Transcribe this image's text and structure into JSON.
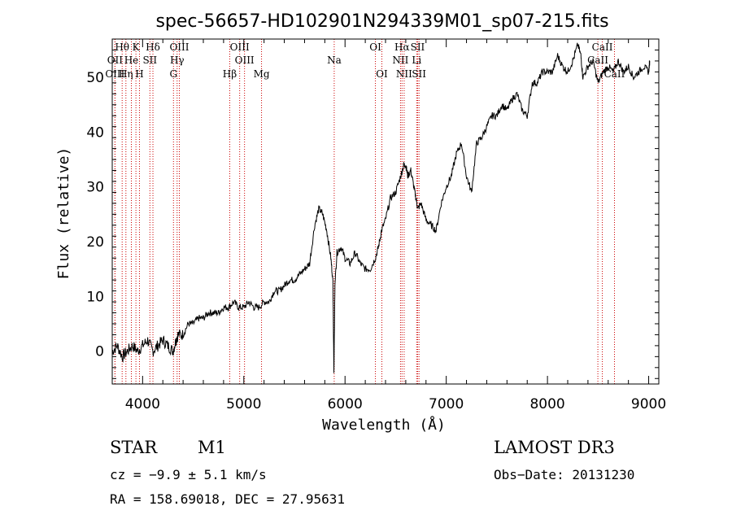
{
  "chart_data": {
    "type": "line",
    "title": "spec-56657-HD102901N294339M01_sp07-215.fits",
    "xlabel": "Wavelength (Å)",
    "ylabel": "Flux (relative)",
    "xlim": [
      3700,
      9100
    ],
    "ylim": [
      -6,
      57
    ],
    "xticks": [
      4000,
      5000,
      6000,
      7000,
      8000,
      9000
    ],
    "yticks": [
      0,
      10,
      20,
      30,
      40,
      50
    ],
    "series": [
      {
        "name": "flux",
        "x": [
          3700,
          3750,
          3800,
          3850,
          3900,
          3950,
          4000,
          4050,
          4100,
          4150,
          4200,
          4250,
          4300,
          4330,
          4350,
          4400,
          4450,
          4500,
          4550,
          4600,
          4650,
          4700,
          4750,
          4800,
          4850,
          4900,
          4950,
          5000,
          5050,
          5100,
          5150,
          5200,
          5250,
          5300,
          5350,
          5400,
          5450,
          5500,
          5550,
          5600,
          5650,
          5700,
          5740,
          5780,
          5820,
          5860,
          5880,
          5890,
          5900,
          5920,
          5960,
          6000,
          6050,
          6100,
          6150,
          6200,
          6250,
          6300,
          6330,
          6360,
          6400,
          6450,
          6500,
          6550,
          6580,
          6600,
          6620,
          6650,
          6680,
          6700,
          6720,
          6750,
          6800,
          6850,
          6900,
          6950,
          7000,
          7050,
          7100,
          7150,
          7200,
          7250,
          7300,
          7350,
          7400,
          7450,
          7500,
          7550,
          7600,
          7650,
          7700,
          7750,
          7800,
          7850,
          7900,
          7950,
          8000,
          8050,
          8100,
          8150,
          8200,
          8250,
          8300,
          8330,
          8350,
          8400,
          8450,
          8500,
          8550,
          8600,
          8650,
          8700,
          8750,
          8800,
          8850,
          8900,
          8950,
          9000,
          9010
        ],
        "values": [
          0,
          1,
          -1,
          0,
          1,
          0,
          1,
          2,
          0,
          1,
          2,
          1,
          0,
          2,
          3,
          3,
          5,
          5,
          6,
          6,
          7,
          7,
          7,
          8,
          8,
          9,
          8,
          8,
          9,
          8,
          8,
          9,
          9,
          11,
          11,
          12,
          13,
          13,
          14,
          15,
          16,
          23,
          26,
          25,
          22,
          17,
          13,
          -4,
          12,
          18,
          19,
          17,
          16,
          18,
          16,
          15,
          15,
          17,
          19,
          22,
          24,
          28,
          29,
          32,
          34,
          34,
          32,
          33,
          30,
          28,
          26,
          27,
          24,
          23,
          22,
          27,
          30,
          32,
          36,
          38,
          32,
          29,
          38,
          39,
          41,
          43,
          43,
          45,
          44,
          46,
          47,
          44,
          43,
          49,
          49,
          51,
          51,
          51,
          54,
          52,
          51,
          53,
          56,
          54,
          50,
          52,
          53,
          49,
          51,
          52,
          51,
          53,
          51,
          52,
          50,
          51,
          52,
          51,
          53
        ]
      }
    ],
    "emission_lines": [
      {
        "label": "Hθ",
        "x": 3798,
        "row": 1
      },
      {
        "label": "OII",
        "x": 3727,
        "row": 2
      },
      {
        "label": "OIII",
        "x": 3727,
        "row": 3
      },
      {
        "label": "K",
        "x": 3934,
        "row": 1
      },
      {
        "label": "He",
        "x": 3889,
        "row": 2
      },
      {
        "label": "Hη",
        "x": 3835,
        "row": 3
      },
      {
        "label": "SII",
        "x": 4072,
        "row": 2
      },
      {
        "label": "H",
        "x": 3969,
        "row": 3
      },
      {
        "label": "Hδ",
        "x": 4102,
        "row": 1
      },
      {
        "label": "OIII",
        "x": 4363,
        "row": 1
      },
      {
        "label": "Hγ",
        "x": 4341,
        "row": 2
      },
      {
        "label": "G",
        "x": 4305,
        "row": 3
      },
      {
        "label": "OIII",
        "x": 4959,
        "row": 1
      },
      {
        "label": "OIII",
        "x": 5007,
        "row": 2
      },
      {
        "label": "Hβ",
        "x": 4861,
        "row": 3
      },
      {
        "label": "Mg",
        "x": 5175,
        "row": 3
      },
      {
        "label": "Na",
        "x": 5893,
        "row": 2
      },
      {
        "label": "OI",
        "x": 6300,
        "row": 1
      },
      {
        "label": "OI",
        "x": 6364,
        "row": 3
      },
      {
        "label": "Hα",
        "x": 6563,
        "row": 1
      },
      {
        "label": "NII",
        "x": 6548,
        "row": 2
      },
      {
        "label": "NII",
        "x": 6584,
        "row": 3
      },
      {
        "label": "SII",
        "x": 6717,
        "row": 1
      },
      {
        "label": "Li",
        "x": 6708,
        "row": 2
      },
      {
        "label": "SII",
        "x": 6731,
        "row": 3
      },
      {
        "label": "CaII",
        "x": 8542,
        "row": 1
      },
      {
        "label": "CaII",
        "x": 8498,
        "row": 2
      },
      {
        "label": "CaII",
        "x": 8662,
        "row": 3
      }
    ]
  },
  "info": {
    "object_class": "STAR",
    "subclass": "M1",
    "survey": "LAMOST DR3",
    "cz": "cz = −9.9 ± 5.1 km/s",
    "obs_date": "Obs−Date: 20131230",
    "radec": "RA = 158.69018, DEC =  27.95631"
  },
  "colors": {
    "line_marker": "#cc0000",
    "spectrum": "#000000"
  }
}
